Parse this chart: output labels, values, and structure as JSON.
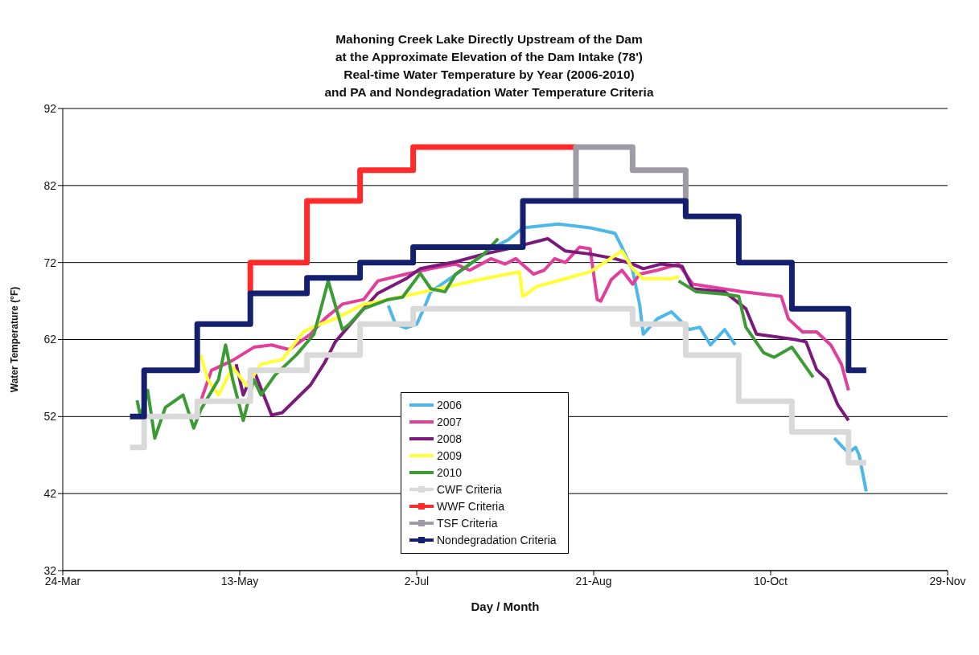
{
  "chart_data": {
    "type": "line",
    "title": "Mahoning Creek Lake Directly Upstream of the Dam\nat the Approximate Elevation of the Dam Intake (78')\nReal-time Water Temperature by Year (2006-2010)\nand PA and Nondegradation Water Temperature Criteria",
    "xlabel": "Day / Month",
    "ylabel": "Water Temperature (°F)",
    "xlim": [
      "--03-24",
      "--11-29"
    ],
    "xticks": [
      {
        "value": "--03-24",
        "label": "24-Mar"
      },
      {
        "value": "--05-13",
        "label": "13-May"
      },
      {
        "value": "--07-02",
        "label": "2-Jul"
      },
      {
        "value": "--08-21",
        "label": "21-Aug"
      },
      {
        "value": "--10-10",
        "label": "10-Oct"
      },
      {
        "value": "--11-29",
        "label": "29-Nov"
      }
    ],
    "ylim": [
      32,
      92
    ],
    "yticks": [
      32,
      42,
      52,
      62,
      72,
      82,
      92
    ],
    "grid": "y",
    "legend": "bottom",
    "series": [
      {
        "name": "2006",
        "color": "#4db8e8",
        "x": [
          "--06-24",
          "--06-26",
          "--06-29",
          "--07-02",
          "--07-04",
          "--07-06",
          "--07-16",
          "--07-23",
          "--07-28",
          "--08-01",
          "--08-11",
          "--08-20",
          "--08-27",
          "--08-29",
          "--09-01",
          "--09-03",
          "--09-04",
          "--09-08",
          "--09-12",
          "--09-17",
          "--09-20",
          "--09-23",
          "--09-27",
          "--09-30",
          "--10-13",
          "--10-28",
          "--10-30",
          "--11-01",
          "--11-03",
          "--11-04",
          "--11-06"
        ],
        "values": [
          66.4,
          64,
          63.5,
          64,
          66,
          68.2,
          71.4,
          73.8,
          75,
          76.5,
          77,
          76.5,
          75.8,
          74,
          71,
          66.5,
          62.7,
          64.7,
          65.6,
          63.3,
          63.6,
          61.3,
          63.3,
          61.3,
          null,
          49.2,
          48.2,
          47.3,
          48,
          47,
          42.3
        ]
      },
      {
        "name": "2007",
        "color": "#e0409c",
        "x": [
          "--05-02",
          "--05-05",
          "--05-11",
          "--05-17",
          "--05-22",
          "--05-27",
          "--06-02",
          "--06-06",
          "--06-11",
          "--06-17",
          "--06-21",
          "--06-29",
          "--07-06",
          "--07-13",
          "--07-17",
          "--07-23",
          "--07-27",
          "--07-30",
          "--08-04",
          "--08-07",
          "--08-10",
          "--08-13",
          "--08-17",
          "--08-20",
          "--08-22",
          "--08-23",
          "--08-26",
          "--08-29",
          "--09-01",
          "--09-03",
          "--09-08",
          "--09-14",
          "--09-16",
          "--09-18",
          "--10-02",
          "--10-13",
          "--10-15",
          "--10-19",
          "--10-23",
          "--10-27",
          "--10-30",
          "--11-01"
        ],
        "values": [
          54,
          58,
          59.3,
          61,
          61.3,
          60.7,
          62.7,
          64.7,
          66.6,
          67.2,
          69.6,
          70.5,
          71.2,
          71.8,
          71,
          72.5,
          71.8,
          72.5,
          70.5,
          71,
          72.5,
          72,
          74,
          73.8,
          67.2,
          67,
          69.8,
          71,
          69.2,
          70.5,
          71,
          71.8,
          70.5,
          69.2,
          68.2,
          67.6,
          64.7,
          63,
          63,
          61.3,
          58.8,
          55.4
        ]
      },
      {
        "name": "2008",
        "color": "#7b1a7b",
        "x": [
          "--05-12",
          "--05-14",
          "--05-17",
          "--05-22",
          "--05-25",
          "--06-02",
          "--06-06",
          "--06-09",
          "--06-17",
          "--06-21",
          "--06-29",
          "--07-03",
          "--07-13",
          "--07-21",
          "--07-28",
          "--08-08",
          "--08-13",
          "--08-20",
          "--08-27",
          "--09-01",
          "--09-04",
          "--09-09",
          "--09-15",
          "--09-18",
          "--09-27",
          "--10-03",
          "--10-06",
          "--10-17",
          "--10-20",
          "--10-23",
          "--10-26",
          "--10-29",
          "--11-01"
        ],
        "values": [
          58.8,
          54.8,
          58,
          52.2,
          52.5,
          56.1,
          59,
          61.7,
          66,
          68,
          69.9,
          71.2,
          72.1,
          73.1,
          73.8,
          75.1,
          73.5,
          73.1,
          72.5,
          71.8,
          71.2,
          71.8,
          71.5,
          68.6,
          68.2,
          66,
          62.7,
          62,
          61.7,
          58.1,
          56.8,
          53.5,
          51.5
        ]
      },
      {
        "name": "2009",
        "color": "#ffff33",
        "x": [
          "--05-02",
          "--05-04",
          "--05-07",
          "--05-11",
          "--05-15",
          "--05-19",
          "--05-25",
          "--05-31",
          "--06-03",
          "--06-09",
          "--06-17",
          "--06-21",
          "--06-27",
          "--07-11",
          "--07-21",
          "--07-31",
          "--08-01",
          "--08-05",
          "--08-13",
          "--08-20",
          "--08-29",
          "--09-01",
          "--09-04",
          "--09-12",
          "--09-14"
        ],
        "values": [
          60,
          56.8,
          54.8,
          58.4,
          56,
          58.8,
          59.4,
          63,
          63.7,
          64.7,
          66.6,
          66.9,
          67.5,
          68.9,
          69.9,
          70.8,
          67.6,
          68.9,
          69.9,
          70.8,
          73.5,
          71.2,
          69.9,
          69.9,
          70.2
        ]
      },
      {
        "name": "2010",
        "color": "#3d9b35",
        "x": [
          "--04-14",
          "--04-15",
          "--04-17",
          "--04-19",
          "--04-22",
          "--04-27",
          "--04-30",
          "--05-02",
          "--05-07",
          "--05-09",
          "--05-11",
          "--05-14",
          "--05-17",
          "--05-19",
          "--05-23",
          "--05-29",
          "--06-03",
          "--06-07",
          "--06-11",
          "--06-13",
          "--06-17",
          "--06-24",
          "--06-28",
          "--07-03",
          "--07-06",
          "--07-10",
          "--07-13",
          "--07-21",
          "--07-25",
          "--08-19",
          "--09-14",
          "--09-19",
          "--09-27",
          "--10-01",
          "--10-03",
          "--10-08",
          "--10-11",
          "--10-16",
          "--10-22"
        ],
        "values": [
          54.1,
          51.9,
          55.4,
          49.2,
          53.2,
          54.8,
          50.5,
          52.9,
          56.8,
          61.3,
          56.8,
          51.5,
          56.8,
          54.8,
          57.4,
          60,
          62.7,
          69.6,
          63.3,
          64,
          66,
          67.2,
          67.5,
          70.6,
          68.6,
          68.2,
          70.5,
          73.1,
          75.1,
          null,
          69.6,
          68.2,
          67.9,
          67.6,
          63.6,
          60.3,
          59.7,
          61,
          57.1
        ]
      },
      {
        "name": "CWF Criteria",
        "type": "step",
        "color": "#d9d9d9",
        "x": [
          "--04-12",
          "--04-16",
          "--05-01",
          "--05-16",
          "--06-01",
          "--06-16",
          "--07-01",
          "--09-01",
          "--09-16",
          "--10-01",
          "--10-16",
          "--11-01",
          "--11-06"
        ],
        "values": [
          48,
          52,
          54,
          58,
          60,
          64,
          66,
          64,
          60,
          54,
          50,
          46,
          46
        ]
      },
      {
        "name": "WWF Criteria",
        "type": "step",
        "color": "#ff2a2a",
        "x": [
          "--05-16",
          "--05-16",
          "--06-01",
          "--06-16",
          "--07-01",
          "--08-16"
        ],
        "values": [
          68,
          72,
          80,
          84,
          87,
          87
        ]
      },
      {
        "name": "TSF Criteria",
        "type": "step",
        "color": "#9e9aa6",
        "x": [
          "--08-16",
          "--08-16",
          "--09-01",
          "--09-16",
          "--09-16"
        ],
        "values": [
          80,
          87,
          84,
          78,
          78
        ]
      },
      {
        "name": "Nondegradation Criteria",
        "type": "step",
        "color": "#14206e",
        "x": [
          "--04-12",
          "--04-16",
          "--05-01",
          "--05-16",
          "--06-01",
          "--06-16",
          "--07-01",
          "--08-01",
          "--09-16",
          "--10-01",
          "--10-16",
          "--11-01",
          "--11-06"
        ],
        "values": [
          52,
          58,
          64,
          68,
          70,
          72,
          74,
          80,
          78,
          72,
          66,
          58,
          58
        ]
      }
    ]
  }
}
